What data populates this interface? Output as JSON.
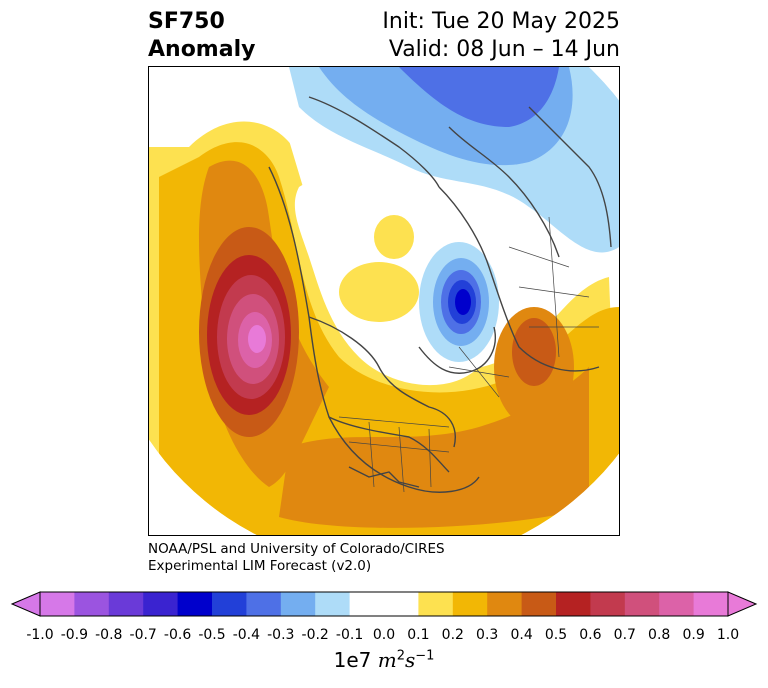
{
  "title": {
    "left_line1": "SF750",
    "left_line2": "Anomaly",
    "right_line1": "Init: Tue 20 May 2025",
    "right_line2": "Valid: 08 Jun – 14 Jun"
  },
  "credit": {
    "line1": "NOAA/PSL and University of Colorado/CIRES",
    "line2": "Experimental LIM Forecast (v2.0)"
  },
  "colorbar": {
    "multiplier": "1e7",
    "unit_base": "m",
    "unit_exp1": "2",
    "unit_base2": "s",
    "unit_exp2": "−1",
    "ticks": [
      "-1.0",
      "-0.9",
      "-0.8",
      "-0.7",
      "-0.6",
      "-0.5",
      "-0.4",
      "-0.3",
      "-0.2",
      "-0.1",
      "0.0",
      "0.1",
      "0.2",
      "0.3",
      "0.4",
      "0.5",
      "0.6",
      "0.7",
      "0.8",
      "0.9",
      "1.0"
    ],
    "colors": [
      "#9b54e0",
      "#6a3ad8",
      "#3a23d0",
      "#0000cc",
      "#2240d8",
      "#4e70e6",
      "#74aef0",
      "#aedcf8",
      "#ffffff",
      "#ffffff",
      "#fde150",
      "#f2b705",
      "#e08810",
      "#c85a16",
      "#b52222",
      "#c23a4e",
      "#d0507c",
      "#dc62a8",
      "#e87ad8"
    ],
    "under_color": "#d678e8",
    "over_color": "#e87ad8"
  },
  "map_colors": {
    "ocean_fill": "#ffffff",
    "coastline": "#444444"
  }
}
